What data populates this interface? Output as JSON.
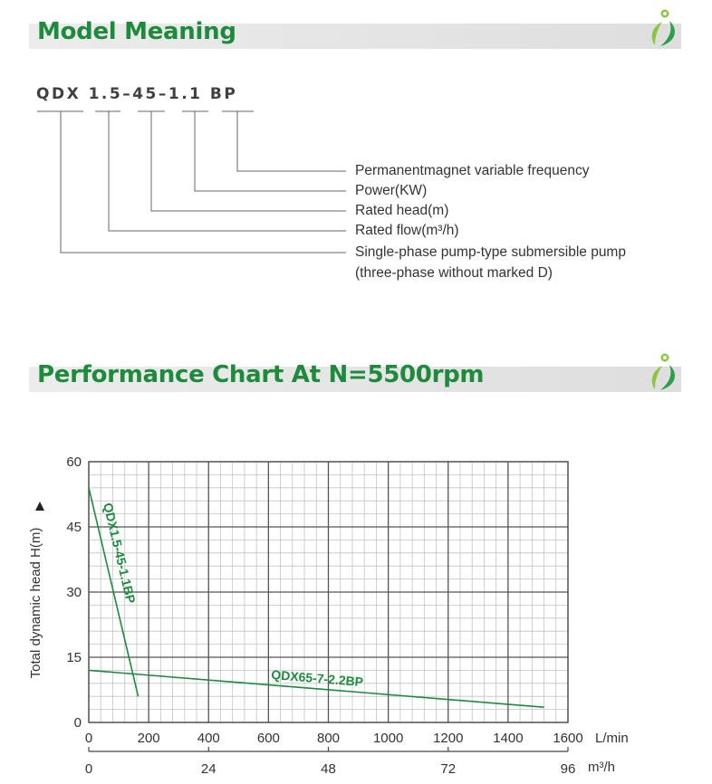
{
  "model_section": {
    "title": "Model Meaning",
    "title_color": "#1e8a3c",
    "model_code": "QDX 1.5–45–1.1 BP",
    "descriptions": [
      "Permanentmagnet variable frequency",
      "Power(KW)",
      "Rated head(m)",
      "Rated flow(m³/h)",
      "Single-phase pump-type submersible pump",
      "(three-phase without marked D)"
    ]
  },
  "chart_section": {
    "title": "Performance Chart At N=5500rpm",
    "title_color": "#1e8a3c"
  },
  "logo": {
    "icon": "leaf-logo-icon",
    "colors": [
      "#8cc63f",
      "#2e9e4a"
    ]
  },
  "chart_data": {
    "type": "line",
    "ylabel": "Total dynamic head H(m)",
    "xlabel": "L/min",
    "secondary_xlabel": "m³/h",
    "xlim": [
      0,
      1600
    ],
    "ylim": [
      0,
      60
    ],
    "x_ticks": [
      "0",
      "200",
      "400",
      "600",
      "800",
      "1000",
      "1200",
      "1400",
      "1600"
    ],
    "y_ticks": [
      "0",
      "15",
      "30",
      "45",
      "60"
    ],
    "secondary_x_ticks": [
      "0",
      "24",
      "48",
      "72",
      "96"
    ],
    "grid": true,
    "curve_color": "#1e8a3c",
    "series": [
      {
        "name": "QDX1.5-45-1.1BP",
        "x": [
          0,
          165
        ],
        "y": [
          54,
          6
        ]
      },
      {
        "name": "QDX65-7-2.2BP",
        "x": [
          0,
          1520
        ],
        "y": [
          12,
          3.5
        ]
      }
    ]
  }
}
